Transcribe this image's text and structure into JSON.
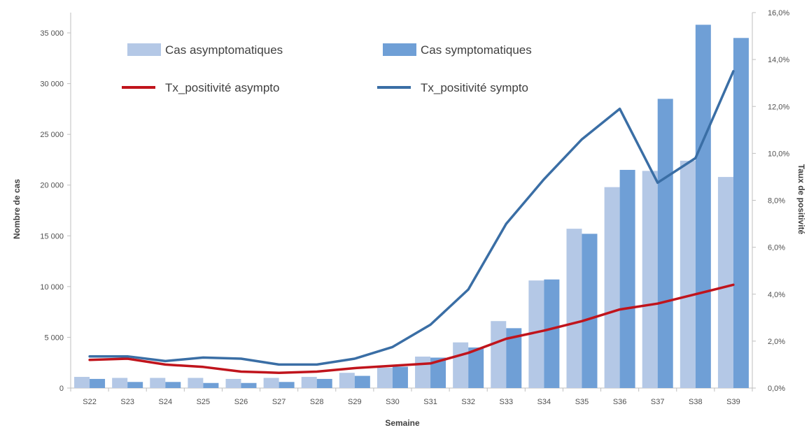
{
  "chart_data": {
    "type": "bar",
    "categories": [
      "S22",
      "S23",
      "S24",
      "S25",
      "S26",
      "S27",
      "S28",
      "S29",
      "S30",
      "S31",
      "S32",
      "S33",
      "S34",
      "S35",
      "S36",
      "S37",
      "S38",
      "S39"
    ],
    "series": [
      {
        "name": "Cas asymptomatiques",
        "kind": "bar",
        "axis": "left",
        "color": "#b4c8e6",
        "values": [
          1100,
          1000,
          1000,
          1000,
          900,
          1000,
          1100,
          1500,
          2000,
          3100,
          4500,
          6600,
          10600,
          15700,
          19800,
          21400,
          22400,
          20800
        ]
      },
      {
        "name": "Cas symptomatiques",
        "kind": "bar",
        "axis": "left",
        "color": "#6f9fd6",
        "values": [
          900,
          600,
          600,
          500,
          500,
          600,
          900,
          1200,
          2100,
          3000,
          4000,
          5900,
          10700,
          15200,
          21500,
          28500,
          35800,
          34500
        ]
      },
      {
        "name": "Tx_positivité asympto",
        "kind": "line",
        "axis": "right",
        "color": "#c0141c",
        "values": [
          1.2,
          1.25,
          1.0,
          0.9,
          0.7,
          0.65,
          0.7,
          0.85,
          0.95,
          1.05,
          1.5,
          2.1,
          2.45,
          2.85,
          3.35,
          3.6,
          4.0,
          4.4
        ]
      },
      {
        "name": "Tx_positivité sympto",
        "kind": "line",
        "axis": "right",
        "color": "#3a6ea5",
        "values": [
          1.35,
          1.35,
          1.15,
          1.3,
          1.25,
          1.0,
          1.0,
          1.25,
          1.75,
          2.7,
          4.2,
          7.0,
          8.9,
          10.6,
          11.9,
          8.75,
          9.8,
          13.5
        ]
      }
    ],
    "xlabel": "Semaine",
    "ylabel": "Nombre de cas",
    "y2label": "Taux de positivité",
    "ylim": [
      0,
      37000
    ],
    "y2lim": [
      0,
      16
    ],
    "yticks": [
      "0",
      "5 000",
      "10 000",
      "15 000",
      "20 000",
      "25 000",
      "30 000",
      "35 000"
    ],
    "y2ticks": [
      "0,0%",
      "2,0%",
      "4,0%",
      "6,0%",
      "8,0%",
      "10,0%",
      "12,0%",
      "14,0%",
      "16,0%"
    ],
    "grid": false,
    "legend_position": "top-left"
  }
}
